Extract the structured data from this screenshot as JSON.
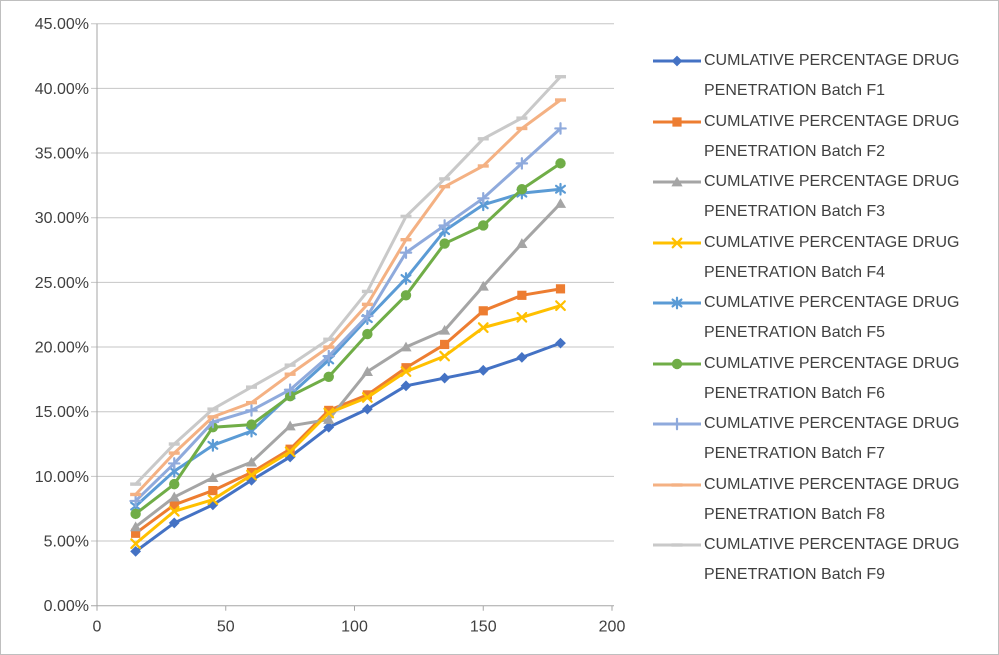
{
  "chart_data": {
    "type": "line",
    "title": "",
    "xlabel": "",
    "ylabel": "",
    "xlim": [
      0,
      200
    ],
    "ylim": [
      0,
      45
    ],
    "grid": true,
    "legend_position": "right",
    "x_ticks": [
      {
        "value": 0,
        "label": "0"
      },
      {
        "value": 50,
        "label": "50"
      },
      {
        "value": 100,
        "label": "100"
      },
      {
        "value": 150,
        "label": "150"
      },
      {
        "value": 200,
        "label": "200"
      }
    ],
    "y_ticks": [
      {
        "value": 0,
        "label": "0.00%"
      },
      {
        "value": 5,
        "label": "5.00%"
      },
      {
        "value": 10,
        "label": "10.00%"
      },
      {
        "value": 15,
        "label": "15.00%"
      },
      {
        "value": 20,
        "label": "20.00%"
      },
      {
        "value": 25,
        "label": "25.00%"
      },
      {
        "value": 30,
        "label": "30.00%"
      },
      {
        "value": 35,
        "label": "35.00%"
      },
      {
        "value": 40,
        "label": "40.00%"
      },
      {
        "value": 45,
        "label": "45.00%"
      }
    ],
    "x": [
      15,
      30,
      45,
      60,
      75,
      90,
      105,
      120,
      135,
      150,
      165,
      180
    ],
    "series": [
      {
        "id": "f1",
        "name": "CUMLATIVE PERCENTAGE DRUG PENETRATION Batch F1",
        "color": "#4472C4",
        "marker": "diamond",
        "values": [
          4.2,
          6.4,
          7.8,
          9.7,
          11.5,
          13.8,
          15.2,
          17.0,
          17.6,
          18.2,
          19.2,
          20.3
        ]
      },
      {
        "id": "f2",
        "name": "CUMLATIVE PERCENTAGE DRUG PENETRATION Batch F2",
        "color": "#ED7D31",
        "marker": "square",
        "values": [
          5.6,
          7.8,
          8.9,
          10.3,
          12.1,
          15.1,
          16.3,
          18.4,
          20.2,
          22.8,
          24.0,
          24.5
        ]
      },
      {
        "id": "f3",
        "name": "CUMLATIVE PERCENTAGE DRUG PENETRATION Batch F3",
        "color": "#A5A5A5",
        "marker": "triangle",
        "values": [
          6.1,
          8.4,
          9.9,
          11.1,
          13.9,
          14.4,
          18.1,
          20.0,
          21.3,
          24.7,
          28.0,
          31.1
        ]
      },
      {
        "id": "f4",
        "name": "CUMLATIVE PERCENTAGE DRUG PENETRATION Batch F4",
        "color": "#FFC000",
        "marker": "x",
        "values": [
          4.8,
          7.3,
          8.2,
          10.1,
          11.9,
          14.9,
          16.1,
          18.1,
          19.3,
          21.5,
          22.3,
          23.2
        ]
      },
      {
        "id": "f5",
        "name": "CUMLATIVE PERCENTAGE DRUG PENETRATION Batch F5",
        "color": "#5B9BD5",
        "marker": "asterisk",
        "values": [
          7.7,
          10.4,
          12.4,
          13.5,
          16.3,
          19.0,
          22.2,
          25.3,
          29.0,
          31.0,
          31.9,
          32.2
        ]
      },
      {
        "id": "f6",
        "name": "CUMLATIVE PERCENTAGE DRUG PENETRATION Batch F6",
        "color": "#70AD47",
        "marker": "circle",
        "values": [
          7.1,
          9.4,
          13.8,
          14.0,
          16.2,
          17.7,
          21.0,
          24.0,
          28.0,
          29.4,
          32.2,
          34.2
        ]
      },
      {
        "id": "f7",
        "name": "CUMLATIVE PERCENTAGE DRUG PENETRATION Batch F7",
        "color": "#8FAADC",
        "marker": "plus",
        "values": [
          8.1,
          11.0,
          14.2,
          15.1,
          16.7,
          19.3,
          22.4,
          27.3,
          29.4,
          31.5,
          34.2,
          36.9
        ]
      },
      {
        "id": "f8",
        "name": "CUMLATIVE PERCENTAGE DRUG PENETRATION Batch F8",
        "color": "#F4B183",
        "marker": "dash",
        "values": [
          8.6,
          11.8,
          14.6,
          15.7,
          17.9,
          20.0,
          23.3,
          28.3,
          32.4,
          34.0,
          36.9,
          39.1
        ]
      },
      {
        "id": "f9",
        "name": "CUMLATIVE PERCENTAGE DRUG PENETRATION Batch F9",
        "color": "#C9C9C9",
        "marker": "dash",
        "values": [
          9.4,
          12.5,
          15.2,
          16.9,
          18.6,
          20.6,
          24.3,
          30.1,
          33.0,
          36.1,
          37.7,
          40.9
        ]
      }
    ],
    "style": {
      "gridline_color": "#c6c6c6",
      "axis_color": "#a6a6a6",
      "tick_label_color": "#404040",
      "background": "#ffffff"
    }
  }
}
